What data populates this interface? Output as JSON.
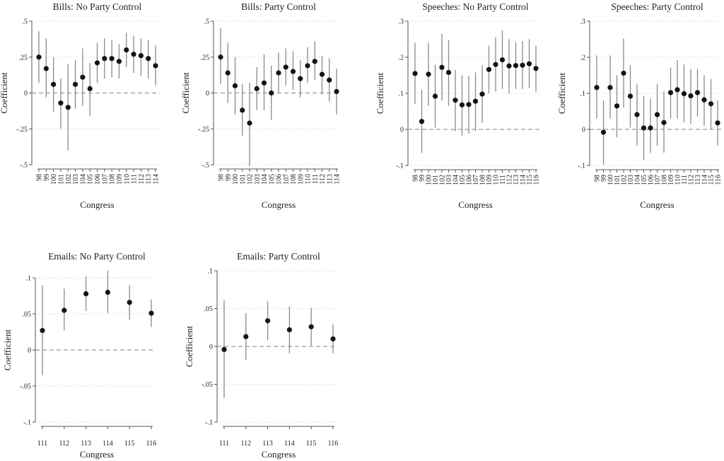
{
  "figure": {
    "xlabel": "Congress",
    "ylabel": "Coefficient"
  },
  "chart_data": [
    {
      "type": "scatter",
      "title": "Bills: No Party Control",
      "xlabel": "Congress",
      "ylabel": "Coefficient",
      "ylim": [
        -0.5,
        0.5
      ],
      "yticks": [
        -0.5,
        -0.25,
        0,
        0.25,
        0.5
      ],
      "ytick_labels": [
        "-.5",
        "-.25",
        "0",
        ".25",
        ".5"
      ],
      "categories": [
        "98",
        "99",
        "100",
        "101",
        "102",
        "103",
        "104",
        "105",
        "106",
        "107",
        "108",
        "109",
        "110",
        "111",
        "112",
        "113",
        "114"
      ],
      "values": [
        0.25,
        0.17,
        0.06,
        -0.07,
        -0.1,
        0.06,
        0.11,
        0.03,
        0.21,
        0.24,
        0.24,
        0.22,
        0.3,
        0.27,
        0.26,
        0.24,
        0.19
      ],
      "ci_low": [
        0.07,
        -0.03,
        -0.13,
        -0.25,
        -0.4,
        -0.11,
        -0.09,
        -0.16,
        0.07,
        0.1,
        0.11,
        0.1,
        0.18,
        0.14,
        0.12,
        0.1,
        0.05
      ],
      "ci_high": [
        0.43,
        0.38,
        0.25,
        0.1,
        0.2,
        0.23,
        0.31,
        0.21,
        0.35,
        0.38,
        0.37,
        0.34,
        0.42,
        0.4,
        0.38,
        0.37,
        0.33
      ]
    },
    {
      "type": "scatter",
      "title": "Bills: Party Control",
      "xlabel": "Congress",
      "ylabel": "Coefficient",
      "ylim": [
        -0.5,
        0.5
      ],
      "yticks": [
        -0.5,
        -0.25,
        0,
        0.25,
        0.5
      ],
      "ytick_labels": [
        "-.5",
        "-.25",
        "0",
        ".25",
        ".5"
      ],
      "categories": [
        "98",
        "99",
        "100",
        "101",
        "102",
        "103",
        "104",
        "105",
        "106",
        "107",
        "108",
        "109",
        "110",
        "111",
        "112",
        "113",
        "114"
      ],
      "values": [
        0.25,
        0.14,
        0.05,
        -0.12,
        -0.21,
        0.03,
        0.07,
        0.0,
        0.14,
        0.18,
        0.15,
        0.1,
        0.19,
        0.22,
        0.13,
        0.09,
        0.01
      ],
      "ci_low": [
        0.06,
        -0.07,
        -0.15,
        -0.3,
        -0.51,
        -0.12,
        -0.12,
        -0.19,
        0.0,
        0.05,
        0.02,
        -0.03,
        0.07,
        0.09,
        -0.01,
        -0.06,
        -0.15
      ],
      "ci_high": [
        0.45,
        0.35,
        0.25,
        0.06,
        0.07,
        0.18,
        0.27,
        0.19,
        0.28,
        0.31,
        0.29,
        0.23,
        0.32,
        0.36,
        0.26,
        0.24,
        0.17
      ]
    },
    {
      "type": "scatter",
      "title": "Speeches: No Party Control",
      "xlabel": "Congress",
      "ylabel": "Coefficient",
      "ylim": [
        -0.1,
        0.3
      ],
      "yticks": [
        -0.1,
        0,
        0.1,
        0.2,
        0.3
      ],
      "ytick_labels": [
        "-.1",
        "0",
        ".1",
        ".2",
        ".3"
      ],
      "categories": [
        "98",
        "99",
        "100",
        "101",
        "102",
        "103",
        "104",
        "105",
        "106",
        "107",
        "108",
        "109",
        "110",
        "111",
        "112",
        "113",
        "114",
        "115",
        "116"
      ],
      "values": [
        0.155,
        0.022,
        0.153,
        0.092,
        0.172,
        0.158,
        0.081,
        0.068,
        0.069,
        0.078,
        0.098,
        0.166,
        0.18,
        0.193,
        0.176,
        0.177,
        0.178,
        0.182,
        0.169
      ],
      "ci_low": [
        0.07,
        -0.065,
        0.065,
        0.005,
        0.08,
        0.065,
        -0.005,
        -0.017,
        -0.012,
        -0.005,
        0.018,
        0.1,
        0.105,
        0.112,
        0.1,
        0.112,
        0.112,
        0.115,
        0.105
      ],
      "ci_high": [
        0.24,
        0.11,
        0.24,
        0.18,
        0.265,
        0.248,
        0.165,
        0.15,
        0.148,
        0.158,
        0.178,
        0.232,
        0.255,
        0.275,
        0.25,
        0.242,
        0.245,
        0.25,
        0.232
      ]
    },
    {
      "type": "scatter",
      "title": "Speeches: Party Control",
      "xlabel": "Congress",
      "ylabel": "Coefficient",
      "ylim": [
        -0.1,
        0.3
      ],
      "yticks": [
        -0.1,
        0,
        0.1,
        0.2,
        0.3
      ],
      "ytick_labels": [
        "-.1",
        "0",
        ".1",
        ".2",
        ".3"
      ],
      "categories": [
        "98",
        "99",
        "100",
        "101",
        "102",
        "103",
        "104",
        "105",
        "106",
        "107",
        "108",
        "109",
        "110",
        "111",
        "112",
        "113",
        "114",
        "115",
        "116"
      ],
      "values": [
        0.116,
        -0.008,
        0.116,
        0.065,
        0.156,
        0.092,
        0.041,
        0.004,
        0.004,
        0.041,
        0.019,
        0.102,
        0.11,
        0.099,
        0.093,
        0.102,
        0.082,
        0.071,
        0.018
      ],
      "ci_low": [
        0.03,
        -0.098,
        0.03,
        -0.022,
        0.06,
        0.005,
        -0.045,
        -0.085,
        -0.065,
        -0.045,
        -0.065,
        0.03,
        0.03,
        0.02,
        0.015,
        0.035,
        0.01,
        0.0,
        -0.045
      ],
      "ci_high": [
        0.205,
        0.08,
        0.205,
        0.15,
        0.252,
        0.178,
        0.125,
        0.092,
        0.085,
        0.125,
        0.105,
        0.172,
        0.192,
        0.18,
        0.168,
        0.168,
        0.15,
        0.14,
        0.08
      ]
    },
    {
      "type": "scatter",
      "title": "Emails: No Party Control",
      "xlabel": "Congress",
      "ylabel": "Coefficient",
      "ylim": [
        -0.1,
        0.1
      ],
      "yticks": [
        -0.1,
        -0.05,
        0,
        0.05,
        0.1
      ],
      "ytick_labels": [
        "-.1",
        "-.05",
        "0",
        ".05",
        ".1"
      ],
      "categories": [
        "111",
        "112",
        "113",
        "114",
        "115",
        "116"
      ],
      "values": [
        0.027,
        0.055,
        0.078,
        0.08,
        0.066,
        0.051
      ],
      "ci_low": [
        -0.035,
        0.027,
        0.054,
        0.051,
        0.042,
        0.032
      ],
      "ci_high": [
        0.09,
        0.085,
        0.102,
        0.11,
        0.09,
        0.07
      ]
    },
    {
      "type": "scatter",
      "title": "Emails: Party Control",
      "xlabel": "Congress",
      "ylabel": "Coefficient",
      "ylim": [
        -0.1,
        0.1
      ],
      "yticks": [
        -0.1,
        -0.05,
        0,
        0.05,
        0.1
      ],
      "ytick_labels": [
        "-.1",
        "-.05",
        "0",
        ".05",
        ".1"
      ],
      "categories": [
        "111",
        "112",
        "113",
        "114",
        "115",
        "116"
      ],
      "values": [
        -0.004,
        0.013,
        0.034,
        0.022,
        0.026,
        0.01
      ],
      "ci_low": [
        -0.068,
        -0.018,
        0.008,
        -0.009,
        0.001,
        -0.009
      ],
      "ci_high": [
        0.061,
        0.044,
        0.06,
        0.053,
        0.051,
        0.029
      ]
    }
  ]
}
